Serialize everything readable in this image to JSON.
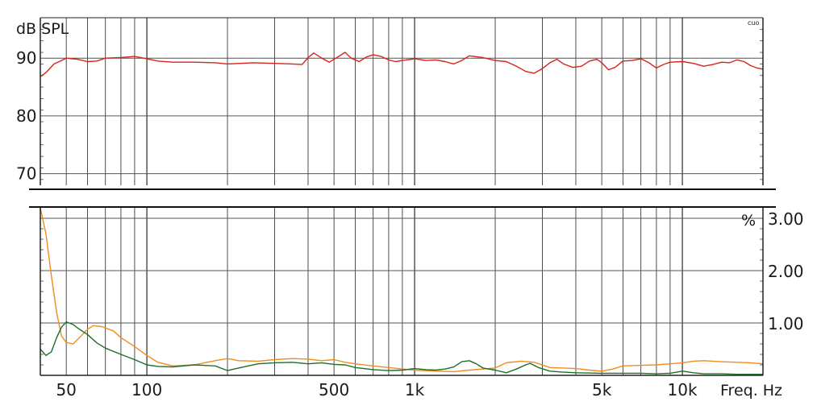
{
  "chart_data": [
    {
      "type": "line",
      "panel": "top",
      "ylabel": "dB SPL",
      "corner_label": "cuo",
      "xscale": "log",
      "xlim": [
        40,
        20000
      ],
      "ylim": [
        68,
        97
      ],
      "y_ticks": [
        70,
        80,
        90
      ],
      "grid": true,
      "series": [
        {
          "color": "#d8231b",
          "points": [
            [
              40,
              86.8
            ],
            [
              42,
              87.5
            ],
            [
              45,
              89.0
            ],
            [
              48,
              89.6
            ],
            [
              50,
              90.0
            ],
            [
              55,
              89.8
            ],
            [
              60,
              89.4
            ],
            [
              65,
              89.5
            ],
            [
              70,
              90.0
            ],
            [
              80,
              90.1
            ],
            [
              90,
              90.3
            ],
            [
              100,
              89.9
            ],
            [
              110,
              89.5
            ],
            [
              125,
              89.3
            ],
            [
              150,
              89.3
            ],
            [
              180,
              89.2
            ],
            [
              200,
              89.0
            ],
            [
              250,
              89.2
            ],
            [
              300,
              89.1
            ],
            [
              350,
              89.0
            ],
            [
              380,
              88.9
            ],
            [
              400,
              90.1
            ],
            [
              420,
              90.9
            ],
            [
              450,
              90.0
            ],
            [
              480,
              89.3
            ],
            [
              520,
              90.3
            ],
            [
              550,
              91.0
            ],
            [
              580,
              90.0
            ],
            [
              620,
              89.4
            ],
            [
              660,
              90.2
            ],
            [
              700,
              90.6
            ],
            [
              750,
              90.3
            ],
            [
              800,
              89.7
            ],
            [
              850,
              89.4
            ],
            [
              900,
              89.6
            ],
            [
              1000,
              89.9
            ],
            [
              1100,
              89.6
            ],
            [
              1200,
              89.7
            ],
            [
              1300,
              89.4
            ],
            [
              1400,
              89.0
            ],
            [
              1500,
              89.6
            ],
            [
              1600,
              90.4
            ],
            [
              1800,
              90.1
            ],
            [
              2000,
              89.6
            ],
            [
              2200,
              89.4
            ],
            [
              2400,
              88.6
            ],
            [
              2600,
              87.7
            ],
            [
              2800,
              87.4
            ],
            [
              3000,
              88.2
            ],
            [
              3200,
              89.2
            ],
            [
              3400,
              89.8
            ],
            [
              3600,
              89.0
            ],
            [
              3900,
              88.4
            ],
            [
              4200,
              88.6
            ],
            [
              4500,
              89.5
            ],
            [
              4800,
              89.8
            ],
            [
              5000,
              89.2
            ],
            [
              5300,
              88.0
            ],
            [
              5600,
              88.4
            ],
            [
              6000,
              89.5
            ],
            [
              6500,
              89.6
            ],
            [
              7000,
              89.9
            ],
            [
              7500,
              89.2
            ],
            [
              8000,
              88.3
            ],
            [
              8500,
              88.9
            ],
            [
              9000,
              89.3
            ],
            [
              10000,
              89.4
            ],
            [
              11000,
              89.1
            ],
            [
              12000,
              88.6
            ],
            [
              13000,
              88.9
            ],
            [
              14000,
              89.3
            ],
            [
              15000,
              89.2
            ],
            [
              16000,
              89.7
            ],
            [
              17000,
              89.4
            ],
            [
              18000,
              88.7
            ],
            [
              19000,
              88.3
            ],
            [
              20000,
              88.1
            ]
          ]
        }
      ]
    },
    {
      "type": "line",
      "panel": "bottom",
      "ylabel": "%",
      "xlabel": "Freq. Hz",
      "xscale": "log",
      "xlim": [
        40,
        20000
      ],
      "ylim": [
        0,
        3.2
      ],
      "y_ticks": [
        1.0,
        2.0,
        3.0
      ],
      "y_tick_labels": [
        "1.00",
        "2.00",
        "3.00"
      ],
      "x_ticks": [
        50,
        100,
        500,
        1000,
        5000,
        10000
      ],
      "x_tick_labels": [
        "50",
        "100",
        "500",
        "1k",
        "5k",
        "10k"
      ],
      "grid": true,
      "series": [
        {
          "color": "#f08c1e",
          "points": [
            [
              40,
              3.3
            ],
            [
              42,
              2.7
            ],
            [
              44,
              1.9
            ],
            [
              46,
              1.2
            ],
            [
              48,
              0.75
            ],
            [
              50,
              0.63
            ],
            [
              53,
              0.6
            ],
            [
              56,
              0.72
            ],
            [
              60,
              0.88
            ],
            [
              63,
              0.95
            ],
            [
              68,
              0.93
            ],
            [
              75,
              0.85
            ],
            [
              80,
              0.72
            ],
            [
              90,
              0.55
            ],
            [
              100,
              0.38
            ],
            [
              110,
              0.25
            ],
            [
              125,
              0.18
            ],
            [
              150,
              0.2
            ],
            [
              180,
              0.28
            ],
            [
              200,
              0.32
            ],
            [
              220,
              0.28
            ],
            [
              260,
              0.27
            ],
            [
              300,
              0.3
            ],
            [
              350,
              0.32
            ],
            [
              400,
              0.31
            ],
            [
              450,
              0.28
            ],
            [
              500,
              0.3
            ],
            [
              550,
              0.25
            ],
            [
              600,
              0.22
            ],
            [
              700,
              0.18
            ],
            [
              800,
              0.15
            ],
            [
              900,
              0.12
            ],
            [
              1000,
              0.1
            ],
            [
              1200,
              0.08
            ],
            [
              1400,
              0.07
            ],
            [
              1600,
              0.1
            ],
            [
              1800,
              0.12
            ],
            [
              2000,
              0.14
            ],
            [
              2200,
              0.24
            ],
            [
              2500,
              0.27
            ],
            [
              2800,
              0.25
            ],
            [
              3200,
              0.15
            ],
            [
              3600,
              0.14
            ],
            [
              4000,
              0.13
            ],
            [
              4500,
              0.1
            ],
            [
              5000,
              0.08
            ],
            [
              5500,
              0.12
            ],
            [
              6000,
              0.18
            ],
            [
              7000,
              0.19
            ],
            [
              8000,
              0.2
            ],
            [
              9000,
              0.22
            ],
            [
              10000,
              0.24
            ],
            [
              11000,
              0.27
            ],
            [
              12000,
              0.28
            ],
            [
              14000,
              0.26
            ],
            [
              16000,
              0.25
            ],
            [
              18000,
              0.24
            ],
            [
              20000,
              0.22
            ]
          ]
        },
        {
          "color": "#1e6e28",
          "points": [
            [
              40,
              0.5
            ],
            [
              42,
              0.38
            ],
            [
              44,
              0.45
            ],
            [
              46,
              0.72
            ],
            [
              48,
              0.92
            ],
            [
              50,
              1.02
            ],
            [
              53,
              0.97
            ],
            [
              56,
              0.88
            ],
            [
              60,
              0.78
            ],
            [
              65,
              0.62
            ],
            [
              70,
              0.52
            ],
            [
              80,
              0.4
            ],
            [
              90,
              0.3
            ],
            [
              100,
              0.2
            ],
            [
              110,
              0.17
            ],
            [
              125,
              0.16
            ],
            [
              150,
              0.2
            ],
            [
              180,
              0.18
            ],
            [
              200,
              0.09
            ],
            [
              220,
              0.14
            ],
            [
              260,
              0.22
            ],
            [
              300,
              0.24
            ],
            [
              350,
              0.25
            ],
            [
              400,
              0.22
            ],
            [
              450,
              0.24
            ],
            [
              500,
              0.21
            ],
            [
              550,
              0.2
            ],
            [
              600,
              0.15
            ],
            [
              700,
              0.11
            ],
            [
              800,
              0.09
            ],
            [
              900,
              0.1
            ],
            [
              1000,
              0.13
            ],
            [
              1100,
              0.11
            ],
            [
              1200,
              0.1
            ],
            [
              1300,
              0.12
            ],
            [
              1400,
              0.16
            ],
            [
              1500,
              0.26
            ],
            [
              1600,
              0.28
            ],
            [
              1700,
              0.22
            ],
            [
              1800,
              0.14
            ],
            [
              2000,
              0.1
            ],
            [
              2200,
              0.05
            ],
            [
              2400,
              0.12
            ],
            [
              2600,
              0.2
            ],
            [
              2700,
              0.23
            ],
            [
              2900,
              0.15
            ],
            [
              3200,
              0.08
            ],
            [
              3600,
              0.06
            ],
            [
              4000,
              0.05
            ],
            [
              5000,
              0.04
            ],
            [
              6000,
              0.04
            ],
            [
              7000,
              0.04
            ],
            [
              8000,
              0.03
            ],
            [
              9000,
              0.04
            ],
            [
              10000,
              0.08
            ],
            [
              11000,
              0.05
            ],
            [
              12000,
              0.03
            ],
            [
              14000,
              0.03
            ],
            [
              16000,
              0.02
            ],
            [
              20000,
              0.02
            ]
          ]
        }
      ]
    }
  ]
}
